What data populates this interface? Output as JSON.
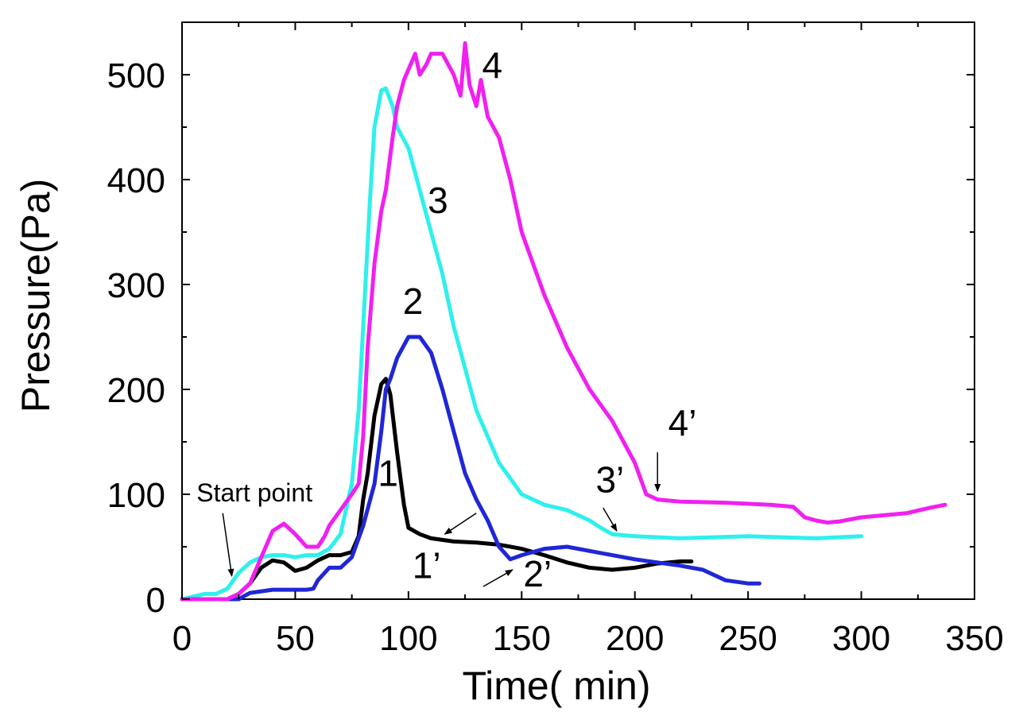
{
  "chart_data": {
    "type": "line",
    "xlabel": "Time( min)",
    "ylabel": "Pressure(Pa)",
    "xlim": [
      0,
      350
    ],
    "ylim": [
      0,
      550
    ],
    "xticks": [
      0,
      50,
      100,
      150,
      200,
      250,
      300,
      350
    ],
    "yticks": [
      0,
      100,
      200,
      300,
      400,
      500
    ],
    "grid": false,
    "series": [
      {
        "name": "1",
        "color": "#000000",
        "x": [
          0,
          20,
          25,
          30,
          35,
          40,
          45,
          50,
          55,
          60,
          65,
          70,
          75,
          78,
          80,
          82,
          85,
          88,
          90,
          92,
          95,
          98,
          100,
          105,
          110,
          120,
          130,
          140,
          150,
          160,
          170,
          180,
          190,
          200,
          210,
          220,
          225
        ],
        "y": [
          0,
          0,
          5,
          15,
          30,
          37,
          35,
          27,
          30,
          37,
          42,
          42,
          45,
          60,
          95,
          120,
          175,
          205,
          210,
          195,
          140,
          90,
          68,
          62,
          58,
          55,
          54,
          52,
          48,
          42,
          35,
          30,
          28,
          30,
          34,
          36,
          36
        ]
      },
      {
        "name": "2",
        "color": "#1f27d6",
        "x": [
          0,
          25,
          30,
          40,
          50,
          55,
          58,
          60,
          65,
          70,
          75,
          80,
          85,
          88,
          90,
          92,
          95,
          100,
          105,
          110,
          115,
          120,
          125,
          130,
          135,
          140,
          145,
          150,
          160,
          170,
          180,
          190,
          200,
          210,
          220,
          230,
          240,
          250,
          255
        ],
        "y": [
          0,
          0,
          6,
          9,
          9,
          9,
          10,
          18,
          30,
          30,
          40,
          70,
          110,
          160,
          200,
          210,
          230,
          250,
          250,
          235,
          200,
          160,
          120,
          95,
          75,
          50,
          38,
          42,
          48,
          50,
          46,
          42,
          38,
          35,
          32,
          28,
          18,
          15,
          15
        ]
      },
      {
        "name": "3",
        "color": "#2ef0ec",
        "x": [
          0,
          10,
          15,
          20,
          25,
          30,
          35,
          40,
          45,
          50,
          55,
          60,
          65,
          70,
          75,
          78,
          80,
          83,
          85,
          88,
          90,
          93,
          95,
          100,
          105,
          110,
          115,
          120,
          125,
          130,
          140,
          150,
          160,
          170,
          175,
          180,
          185,
          190,
          200,
          220,
          250,
          280,
          300
        ],
        "y": [
          0,
          5,
          5,
          10,
          25,
          35,
          40,
          42,
          42,
          40,
          42,
          42,
          48,
          62,
          110,
          180,
          260,
          380,
          450,
          485,
          487,
          470,
          450,
          430,
          390,
          350,
          310,
          260,
          220,
          180,
          130,
          100,
          90,
          85,
          80,
          75,
          68,
          62,
          60,
          58,
          60,
          58,
          60
        ]
      },
      {
        "name": "4",
        "color": "#f020f0",
        "x": [
          0,
          20,
          25,
          30,
          35,
          40,
          45,
          50,
          55,
          60,
          63,
          65,
          70,
          75,
          78,
          80,
          82,
          85,
          88,
          90,
          93,
          95,
          98,
          100,
          103,
          105,
          108,
          110,
          115,
          120,
          123,
          125,
          127,
          130,
          132,
          135,
          140,
          145,
          150,
          160,
          170,
          180,
          190,
          195,
          200,
          205,
          210,
          220,
          240,
          260,
          270,
          275,
          280,
          285,
          290,
          300,
          320,
          330,
          337
        ],
        "y": [
          0,
          0,
          5,
          15,
          40,
          65,
          72,
          62,
          50,
          50,
          60,
          70,
          85,
          100,
          110,
          155,
          240,
          320,
          370,
          390,
          440,
          470,
          495,
          505,
          520,
          500,
          510,
          520,
          520,
          500,
          480,
          530,
          490,
          470,
          495,
          460,
          440,
          400,
          350,
          290,
          240,
          200,
          170,
          150,
          130,
          100,
          95,
          93,
          92,
          90,
          88,
          78,
          75,
          73,
          74,
          78,
          82,
          87,
          90
        ]
      }
    ],
    "annotations": [
      {
        "text": "1",
        "x": 91,
        "y": 108
      },
      {
        "text": "2",
        "x": 102,
        "y": 272
      },
      {
        "text": "3",
        "x": 113,
        "y": 368
      },
      {
        "text": "4",
        "x": 137,
        "y": 497
      },
      {
        "text": "1’",
        "x": 108,
        "y": 20
      },
      {
        "text": "2’",
        "x": 157,
        "y": 12
      },
      {
        "text": "3’",
        "x": 189,
        "y": 102
      },
      {
        "text": "4’",
        "x": 221,
        "y": 156
      },
      {
        "text": "Start point",
        "x": 32,
        "y": 93
      }
    ],
    "arrows": [
      {
        "from": [
          18,
          82
        ],
        "to": [
          22,
          22
        ]
      },
      {
        "from": [
          130,
          82
        ],
        "to": [
          116,
          62
        ]
      },
      {
        "from": [
          133,
          12
        ],
        "to": [
          146,
          28
        ]
      },
      {
        "from": [
          186,
          87
        ],
        "to": [
          192,
          65
        ]
      },
      {
        "from": [
          210,
          140
        ],
        "to": [
          210,
          103
        ]
      }
    ]
  }
}
